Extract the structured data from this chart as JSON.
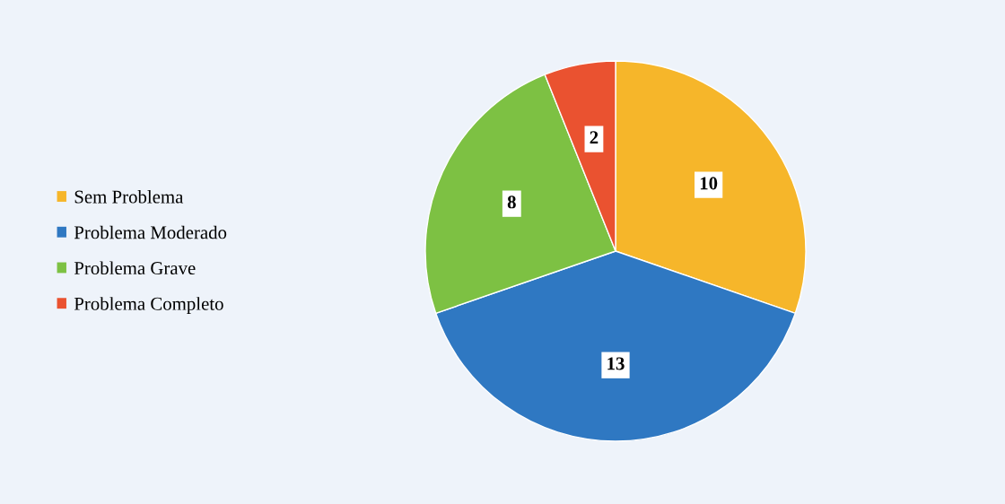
{
  "chart_data": {
    "type": "pie",
    "categories": [
      "Sem Problema",
      "Problema Moderado",
      "Problema Grave",
      "Problema Completo"
    ],
    "values": [
      10,
      13,
      8,
      2
    ],
    "colors": [
      "#f6b62a",
      "#2f78c2",
      "#7dc143",
      "#ea5230"
    ],
    "data_labels": true,
    "legend": "left"
  }
}
